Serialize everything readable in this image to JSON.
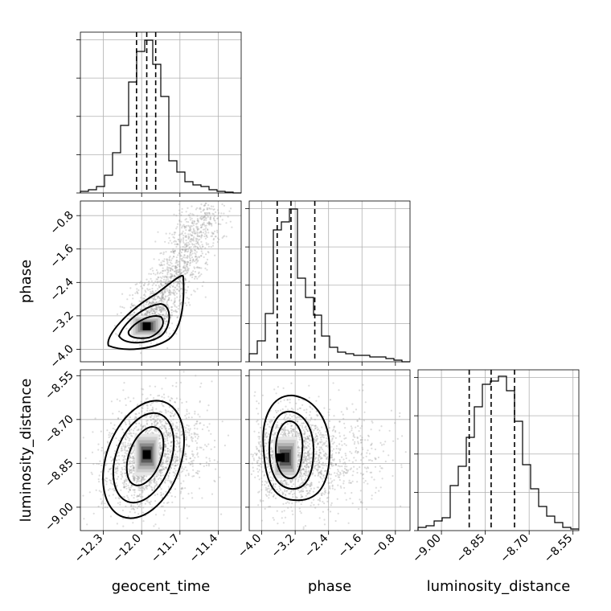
{
  "chart_data": {
    "type": "corner",
    "parameters": [
      "geocent_time",
      "phase",
      "luminosity_distance"
    ],
    "axis_labels": {
      "geocent_time": "geocent_time",
      "phase": "phase",
      "luminosity_distance": "luminosity_distance"
    },
    "ranges": {
      "geocent_time": [
        -12.48,
        -11.22
      ],
      "phase": [
        -4.3,
        -0.45
      ],
      "luminosity_distance": [
        -9.08,
        -8.53
      ]
    },
    "ticks": {
      "geocent_time": [
        -12.3,
        -12.0,
        -11.7,
        -11.4
      ],
      "phase": [
        -4.0,
        -3.2,
        -2.4,
        -1.6,
        -0.8
      ],
      "luminosity_distance": [
        -9.0,
        -8.85,
        -8.7,
        -8.55
      ]
    },
    "tick_labels": {
      "geocent_time": [
        "−12.3",
        "−12.0",
        "−11.7",
        "−11.4"
      ],
      "phase": [
        "−4.0",
        "−3.2",
        "−2.4",
        "−1.6",
        "−0.8"
      ],
      "luminosity_distance": [
        "−9.00",
        "−8.85",
        "−8.70",
        "−8.55"
      ]
    },
    "quantiles": {
      "geocent_time": [
        -12.04,
        -11.96,
        -11.89
      ],
      "phase": [
        -3.63,
        -3.3,
        -2.73
      ],
      "luminosity_distance": [
        -8.905,
        -8.83,
        -8.75
      ]
    },
    "histograms": {
      "geocent_time": [
        0.01,
        0.02,
        0.04,
        0.11,
        0.25,
        0.42,
        0.69,
        0.88,
        0.95,
        0.8,
        0.6,
        0.2,
        0.13,
        0.07,
        0.05,
        0.04,
        0.02,
        0.01,
        0.005,
        0
      ],
      "phase": [
        0.05,
        0.13,
        0.3,
        0.82,
        0.87,
        0.95,
        0.52,
        0.4,
        0.29,
        0.16,
        0.09,
        0.06,
        0.05,
        0.04,
        0.04,
        0.03,
        0.03,
        0.02,
        0.01,
        0
      ],
      "luminosity_distance": [
        0.02,
        0.03,
        0.06,
        0.08,
        0.28,
        0.4,
        0.58,
        0.77,
        0.91,
        0.93,
        0.96,
        0.87,
        0.68,
        0.41,
        0.26,
        0.15,
        0.09,
        0.05,
        0.02,
        0.01
      ]
    },
    "density_peaks": {
      "phase_vs_geocent_time": {
        "x": -11.96,
        "y": -3.45
      },
      "luminosity_distance_vs_geocent_time": {
        "x": -11.96,
        "y": -8.82
      },
      "luminosity_distance_vs_phase": {
        "x": -3.55,
        "y": -8.83
      }
    },
    "grid": true
  }
}
